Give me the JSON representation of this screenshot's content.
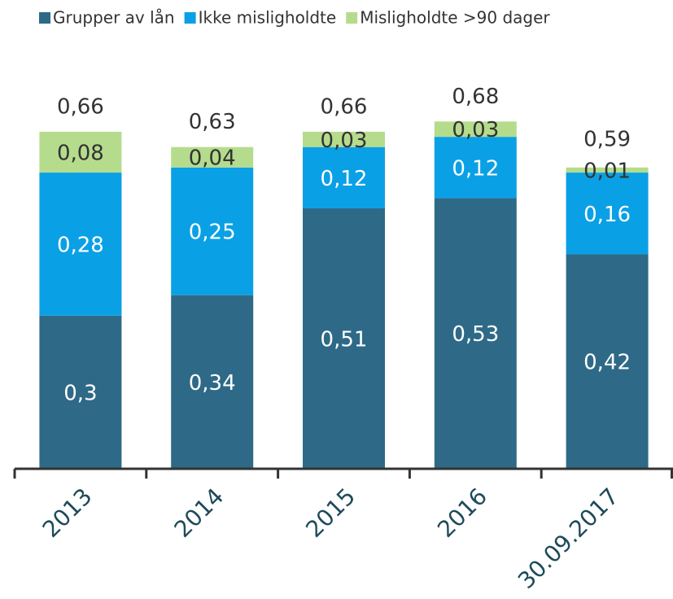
{
  "chart_data": {
    "type": "stacked-bar",
    "categories": [
      "2013",
      "2014",
      "2015",
      "2016",
      "30.09.2017"
    ],
    "series": [
      {
        "name": "Grupper av lån",
        "color": "#2e6a87",
        "values": [
          0.3,
          0.34,
          0.51,
          0.53,
          0.42
        ],
        "value_labels": [
          "0,3",
          "0,34",
          "0,51",
          "0,53",
          "0,42"
        ]
      },
      {
        "name": "Ikke misligholdte",
        "color": "#0aa0e6",
        "values": [
          0.28,
          0.25,
          0.12,
          0.12,
          0.16
        ],
        "value_labels": [
          "0,28",
          "0,25",
          "0,12",
          "0,12",
          "0,16"
        ]
      },
      {
        "name": "Misligholdte >90 dager",
        "color": "#b5dc8c",
        "values": [
          0.08,
          0.04,
          0.03,
          0.03,
          0.01
        ],
        "value_labels": [
          "0,08",
          "0,04",
          "0,03",
          "0,03",
          "0,01"
        ]
      }
    ],
    "totals": [
      0.66,
      0.63,
      0.66,
      0.68,
      0.59
    ],
    "total_labels": [
      "0,66",
      "0,63",
      "0,66",
      "0,68",
      "0,59"
    ],
    "ylim": [
      0,
      0.8
    ]
  }
}
